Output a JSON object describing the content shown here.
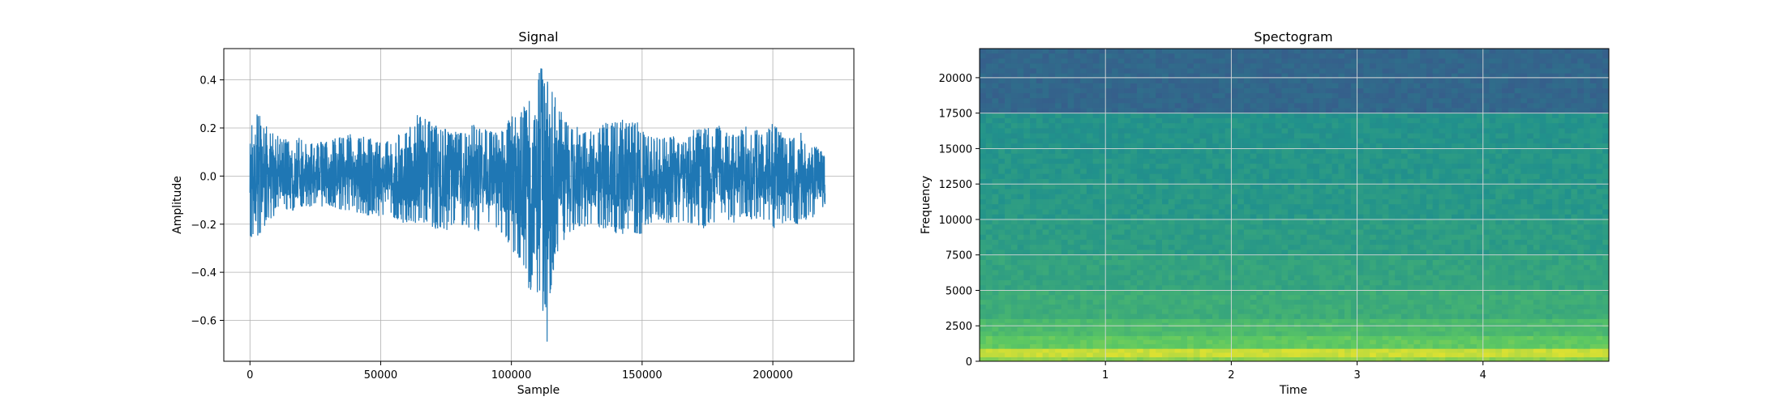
{
  "chart_data": [
    {
      "type": "line",
      "title": "Signal",
      "xlabel": "Sample",
      "ylabel": "Amplitude",
      "xlim": [
        -10000,
        231000
      ],
      "ylim": [
        -0.77,
        0.53
      ],
      "grid": true,
      "xticks": [
        0,
        50000,
        100000,
        150000,
        200000
      ],
      "xtick_labels": [
        "0",
        "50000",
        "100000",
        "150000",
        "200000"
      ],
      "yticks": [
        0.4,
        0.2,
        0.0,
        -0.2,
        -0.4,
        -0.6
      ],
      "ytick_labels": [
        "0.4",
        "0.2",
        "0.0",
        "−0.2",
        "−0.4",
        "−0.6"
      ],
      "color": "#1f77b4",
      "series": [
        {
          "x": [
            0,
            2000,
            5000,
            8000,
            12000,
            16000,
            20000,
            25000,
            30000,
            35000,
            40000,
            45000,
            50000,
            55000,
            60000,
            65000,
            70000,
            75000,
            80000,
            85000,
            90000,
            95000,
            100000,
            103000,
            106000,
            108000,
            110000,
            112000,
            114000,
            115000,
            116000,
            118000,
            120000,
            123000,
            126000,
            130000,
            135000,
            140000,
            145000,
            150000,
            155000,
            160000,
            165000,
            170000,
            175000,
            180000,
            185000,
            190000,
            195000,
            200000,
            205000,
            210000,
            215000,
            220000
          ],
          "upper": [
            0.2,
            0.3,
            0.22,
            0.2,
            0.15,
            0.18,
            0.16,
            0.14,
            0.15,
            0.17,
            0.18,
            0.16,
            0.15,
            0.17,
            0.19,
            0.27,
            0.22,
            0.2,
            0.18,
            0.22,
            0.2,
            0.18,
            0.25,
            0.3,
            0.3,
            0.38,
            0.42,
            0.47,
            0.45,
            0.42,
            0.35,
            0.3,
            0.25,
            0.22,
            0.2,
            0.19,
            0.22,
            0.23,
            0.25,
            0.21,
            0.16,
            0.18,
            0.15,
            0.2,
            0.2,
            0.21,
            0.17,
            0.21,
            0.2,
            0.22,
            0.16,
            0.19,
            0.14,
            0.09
          ],
          "lower": [
            -0.25,
            -0.3,
            -0.22,
            -0.18,
            -0.14,
            -0.15,
            -0.13,
            -0.14,
            -0.13,
            -0.14,
            -0.15,
            -0.18,
            -0.17,
            -0.18,
            -0.2,
            -0.2,
            -0.22,
            -0.24,
            -0.2,
            -0.22,
            -0.24,
            -0.22,
            -0.3,
            -0.36,
            -0.45,
            -0.5,
            -0.58,
            -0.57,
            -0.72,
            -0.48,
            -0.4,
            -0.3,
            -0.27,
            -0.24,
            -0.22,
            -0.2,
            -0.22,
            -0.24,
            -0.26,
            -0.24,
            -0.18,
            -0.2,
            -0.2,
            -0.21,
            -0.22,
            -0.18,
            -0.2,
            -0.18,
            -0.18,
            -0.22,
            -0.2,
            -0.2,
            -0.18,
            -0.12
          ]
        }
      ]
    },
    {
      "type": "heatmap",
      "title": "Spectogram",
      "xlabel": "Time",
      "ylabel": "Frequency",
      "xlim": [
        0,
        5.0
      ],
      "ylim": [
        0,
        22050
      ],
      "grid": true,
      "colormap": "viridis",
      "xticks": [
        1,
        2,
        3,
        4
      ],
      "xtick_labels": [
        "1",
        "2",
        "3",
        "4"
      ],
      "yticks": [
        0,
        2500,
        5000,
        7500,
        10000,
        12500,
        15000,
        17500,
        20000
      ],
      "ytick_labels": [
        "0",
        "2500",
        "5000",
        "7500",
        "10000",
        "12500",
        "15000",
        "17500",
        "20000"
      ],
      "frequency_bands": [
        {
          "from": 0,
          "to": 300,
          "level": 0.82
        },
        {
          "from": 300,
          "to": 900,
          "level": 0.92
        },
        {
          "from": 900,
          "to": 1800,
          "level": 0.75
        },
        {
          "from": 1800,
          "to": 3000,
          "level": 0.68
        },
        {
          "from": 3000,
          "to": 5000,
          "level": 0.62
        },
        {
          "from": 5000,
          "to": 7500,
          "level": 0.58
        },
        {
          "from": 7500,
          "to": 10000,
          "level": 0.55
        },
        {
          "from": 10000,
          "to": 12500,
          "level": 0.53
        },
        {
          "from": 12500,
          "to": 15000,
          "level": 0.52
        },
        {
          "from": 15000,
          "to": 17500,
          "level": 0.51
        },
        {
          "from": 17500,
          "to": 22050,
          "level": 0.33
        }
      ]
    }
  ]
}
